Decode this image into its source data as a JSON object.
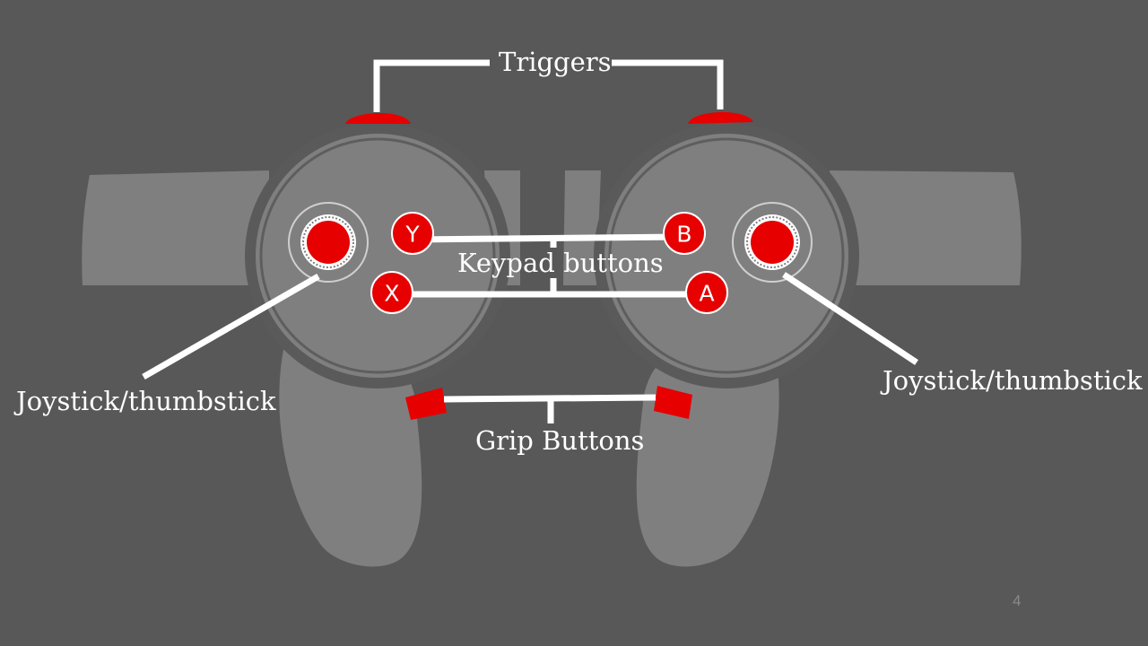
{
  "labels": {
    "triggers": "Triggers",
    "keypad": "Keypad buttons",
    "grip": "Grip Buttons",
    "joystick_left": "Joystick/thumbstick",
    "joystick_right": "Joystick/thumbstick"
  },
  "buttons": {
    "y": "Y",
    "x": "X",
    "b": "B",
    "a": "A"
  },
  "page_number": "4",
  "colors": {
    "background": "#585858",
    "controller_body": "#7f7f7f",
    "controller_ring": "#5a5a5a",
    "accent_red": "#e60000",
    "leader_line": "#ffffff"
  }
}
